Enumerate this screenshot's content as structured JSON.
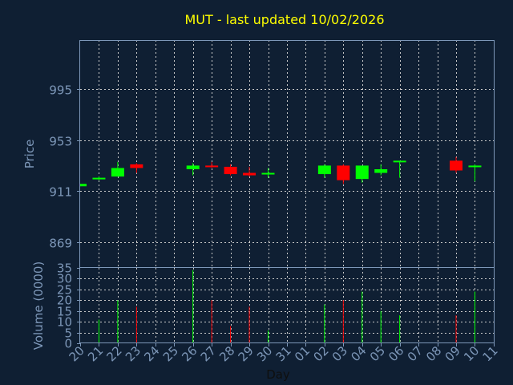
{
  "chart_data": {
    "type": "candlestick",
    "title": "MUT - last updated 10/02/2026",
    "colors": {
      "up": "#00ff00",
      "down": "#ff0000",
      "background": "#0f1f33",
      "axis": "#7d97b8",
      "title": "#ffff00",
      "grid": "#c8c8c8"
    },
    "price_panel": {
      "ylabel": "Price",
      "ylim": [
        848,
        1035
      ],
      "yticks": [
        869,
        911,
        953,
        995
      ],
      "grid": true
    },
    "volume_panel": {
      "ylabel": "Volume (0000)",
      "ylim": [
        0,
        35
      ],
      "yticks": [
        0,
        5,
        10,
        15,
        20,
        25,
        30,
        35
      ],
      "grid": true
    },
    "xlabel": "Day",
    "x_ticks": [
      "20",
      "21",
      "22",
      "23",
      "24",
      "25",
      "26",
      "27",
      "28",
      "29",
      "30",
      "31",
      "01",
      "02",
      "03",
      "04",
      "05",
      "06",
      "07",
      "08",
      "09",
      "10",
      "11"
    ],
    "candles": [
      {
        "day": "20",
        "open": 915,
        "close": 917,
        "high": 917,
        "low": 915,
        "volume": 0
      },
      {
        "day": "21",
        "open": 921,
        "close": 922,
        "high": 923,
        "low": 920,
        "volume": 11
      },
      {
        "day": "22",
        "open": 923,
        "close": 930,
        "high": 935,
        "low": 923,
        "volume": 20
      },
      {
        "day": "23",
        "open": 933,
        "close": 930,
        "high": 934,
        "low": 926,
        "volume": 17
      },
      {
        "day": "26",
        "open": 929,
        "close": 932,
        "high": 934,
        "low": 924,
        "volume": 34
      },
      {
        "day": "27",
        "open": 932,
        "close": 931,
        "high": 935,
        "low": 930,
        "volume": 20
      },
      {
        "day": "28",
        "open": 931,
        "close": 925,
        "high": 933,
        "low": 924,
        "volume": 8
      },
      {
        "day": "29",
        "open": 926,
        "close": 924,
        "high": 931,
        "low": 923,
        "volume": 17
      },
      {
        "day": "30",
        "open": 925,
        "close": 926,
        "high": 930,
        "low": 922,
        "volume": 6
      },
      {
        "day": "02",
        "open": 925,
        "close": 932,
        "high": 933,
        "low": 922,
        "volume": 18
      },
      {
        "day": "03",
        "open": 932,
        "close": 920,
        "high": 933,
        "low": 917,
        "volume": 20
      },
      {
        "day": "04",
        "open": 921,
        "close": 932,
        "high": 932,
        "low": 918,
        "volume": 24
      },
      {
        "day": "05",
        "open": 926,
        "close": 929,
        "high": 933,
        "low": 924,
        "volume": 15
      },
      {
        "day": "06",
        "open": 935,
        "close": 936,
        "high": 936,
        "low": 922,
        "volume": 13
      },
      {
        "day": "09",
        "open": 936,
        "close": 928,
        "high": 939,
        "low": 926,
        "volume": 13
      },
      {
        "day": "10",
        "open": 931,
        "close": 932,
        "high": 933,
        "low": 919,
        "volume": 24
      }
    ]
  }
}
